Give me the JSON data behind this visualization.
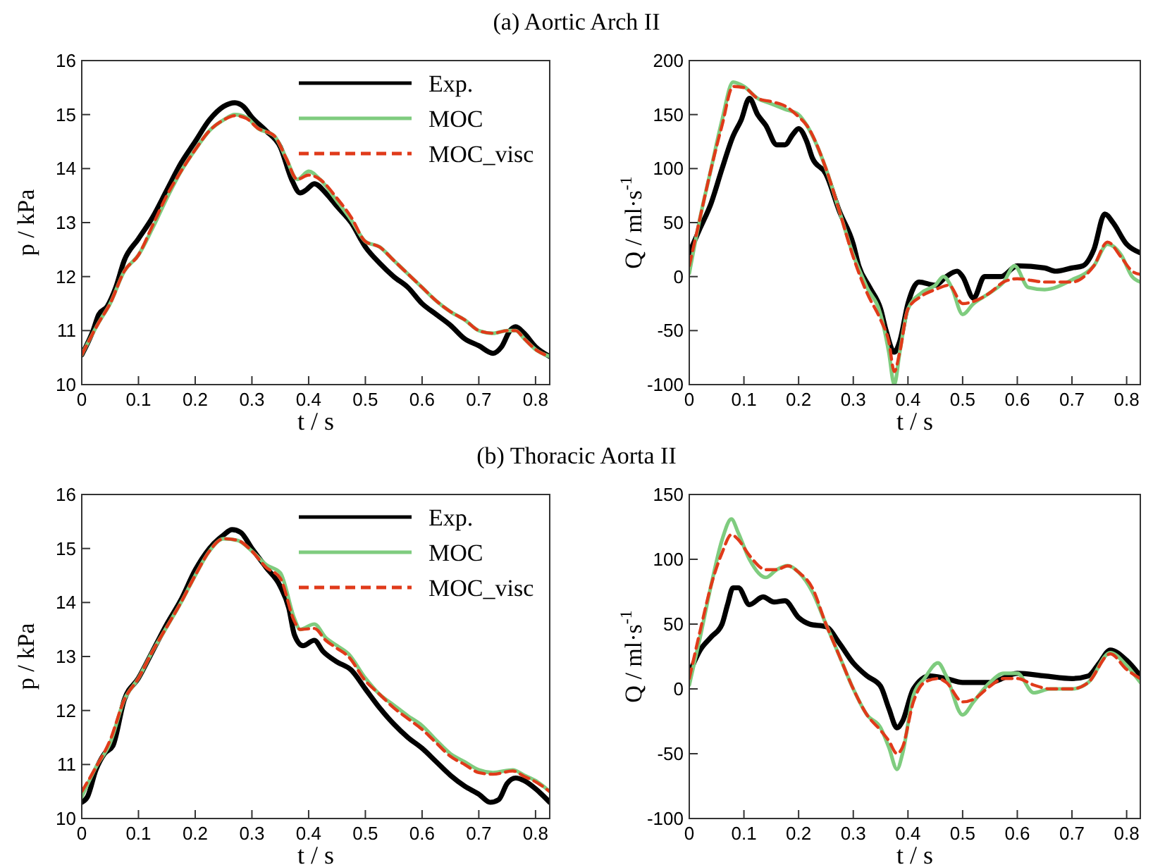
{
  "chart_data": [
    {
      "type": "line",
      "title": "(a) Aortic Arch II",
      "xlabel": "t / s",
      "ylabel": "p / kPa",
      "xlim": [
        0,
        0.825
      ],
      "ylim": [
        10,
        16
      ],
      "xticks": [
        0,
        0.1,
        0.2,
        0.3,
        0.4,
        0.5,
        0.6,
        0.7,
        0.8
      ],
      "yticks": [
        10,
        11,
        12,
        13,
        14,
        15,
        16
      ],
      "legend": "top right",
      "grid": false,
      "marker": "none",
      "series": [
        {
          "name": "Exp.",
          "color": "#000000",
          "line_style": "solid",
          "x": [
            0,
            0.02,
            0.03,
            0.045,
            0.06,
            0.075,
            0.1,
            0.125,
            0.15,
            0.175,
            0.2,
            0.225,
            0.25,
            0.27,
            0.285,
            0.3,
            0.325,
            0.35,
            0.37,
            0.385,
            0.395,
            0.41,
            0.43,
            0.45,
            0.475,
            0.5,
            0.525,
            0.55,
            0.575,
            0.6,
            0.625,
            0.65,
            0.675,
            0.7,
            0.725,
            0.74,
            0.755,
            0.765,
            0.78,
            0.8,
            0.825
          ],
          "values": [
            10.55,
            11.0,
            11.3,
            11.45,
            11.8,
            12.3,
            12.7,
            13.1,
            13.6,
            14.1,
            14.5,
            14.9,
            15.15,
            15.22,
            15.15,
            14.95,
            14.7,
            14.4,
            13.8,
            13.55,
            13.6,
            13.72,
            13.55,
            13.3,
            13.0,
            12.55,
            12.25,
            12.0,
            11.8,
            11.5,
            11.3,
            11.1,
            10.85,
            10.72,
            10.58,
            10.7,
            11.0,
            11.07,
            10.95,
            10.7,
            10.52
          ]
        },
        {
          "name": "MOC",
          "color": "#7fcc7f",
          "line_style": "solid",
          "x": [
            0,
            0.03,
            0.05,
            0.075,
            0.1,
            0.125,
            0.15,
            0.175,
            0.2,
            0.225,
            0.25,
            0.27,
            0.29,
            0.31,
            0.34,
            0.36,
            0.38,
            0.4,
            0.42,
            0.45,
            0.475,
            0.5,
            0.525,
            0.55,
            0.575,
            0.6,
            0.625,
            0.65,
            0.675,
            0.7,
            0.725,
            0.75,
            0.765,
            0.78,
            0.8,
            0.825
          ],
          "values": [
            10.55,
            11.15,
            11.5,
            12.1,
            12.4,
            12.9,
            13.45,
            13.95,
            14.35,
            14.7,
            14.9,
            15.0,
            14.95,
            14.75,
            14.6,
            14.2,
            13.8,
            13.95,
            13.8,
            13.4,
            13.05,
            12.65,
            12.55,
            12.3,
            12.05,
            11.8,
            11.55,
            11.35,
            11.2,
            11.0,
            10.95,
            11.0,
            11.0,
            10.85,
            10.65,
            10.52
          ]
        },
        {
          "name": "MOC_visc",
          "color": "#e03a1a",
          "line_style": "dashed",
          "x": [
            0,
            0.03,
            0.05,
            0.075,
            0.1,
            0.125,
            0.15,
            0.175,
            0.2,
            0.225,
            0.25,
            0.27,
            0.29,
            0.31,
            0.34,
            0.36,
            0.38,
            0.4,
            0.42,
            0.45,
            0.475,
            0.5,
            0.525,
            0.55,
            0.575,
            0.6,
            0.625,
            0.65,
            0.675,
            0.7,
            0.725,
            0.75,
            0.765,
            0.78,
            0.8,
            0.825
          ],
          "values": [
            10.55,
            11.15,
            11.5,
            12.1,
            12.4,
            12.95,
            13.5,
            13.95,
            14.35,
            14.7,
            14.9,
            14.98,
            14.93,
            14.75,
            14.6,
            14.2,
            13.8,
            13.88,
            13.8,
            13.45,
            13.1,
            12.65,
            12.55,
            12.3,
            12.05,
            11.8,
            11.55,
            11.35,
            11.2,
            11.0,
            10.95,
            11.0,
            11.0,
            10.85,
            10.65,
            10.52
          ]
        }
      ]
    },
    {
      "type": "line",
      "xlabel": "t / s",
      "ylabel": "Q / ml·s$^{-1}$",
      "xlim": [
        0,
        0.825
      ],
      "ylim": [
        -100,
        200
      ],
      "xticks": [
        0,
        0.1,
        0.2,
        0.3,
        0.4,
        0.5,
        0.6,
        0.7,
        0.8
      ],
      "yticks": [
        -100,
        -50,
        0,
        50,
        100,
        150,
        200
      ],
      "grid": false,
      "marker": "none",
      "series": [
        {
          "color": "#000000",
          "line_style": "solid",
          "x": [
            0,
            0.02,
            0.04,
            0.06,
            0.08,
            0.095,
            0.11,
            0.125,
            0.14,
            0.16,
            0.175,
            0.19,
            0.2,
            0.215,
            0.225,
            0.25,
            0.275,
            0.3,
            0.31,
            0.33,
            0.35,
            0.36,
            0.375,
            0.385,
            0.4,
            0.42,
            0.45,
            0.47,
            0.49,
            0.5,
            0.52,
            0.54,
            0.57,
            0.6,
            0.65,
            0.67,
            0.7,
            0.72,
            0.74,
            0.76,
            0.775,
            0.8,
            0.825
          ],
          "values": [
            22,
            45,
            68,
            100,
            130,
            145,
            165,
            150,
            140,
            122,
            122,
            132,
            137,
            125,
            110,
            95,
            60,
            30,
            10,
            -10,
            -30,
            -50,
            -70,
            -60,
            -25,
            -5,
            -8,
            0,
            5,
            0,
            -20,
            0,
            0,
            10,
            8,
            5,
            8,
            10,
            25,
            58,
            50,
            30,
            22
          ]
        },
        {
          "color": "#7fcc7f",
          "line_style": "solid",
          "x": [
            0,
            0.02,
            0.04,
            0.06,
            0.08,
            0.1,
            0.125,
            0.15,
            0.175,
            0.2,
            0.215,
            0.25,
            0.275,
            0.3,
            0.325,
            0.35,
            0.365,
            0.375,
            0.385,
            0.4,
            0.425,
            0.45,
            0.465,
            0.48,
            0.5,
            0.52,
            0.55,
            0.575,
            0.595,
            0.62,
            0.65,
            0.7,
            0.74,
            0.765,
            0.79,
            0.81,
            0.825
          ],
          "values": [
            3,
            55,
            100,
            145,
            180,
            176,
            165,
            160,
            155,
            150,
            140,
            100,
            60,
            20,
            -10,
            -35,
            -70,
            -100,
            -70,
            -30,
            -15,
            -8,
            0,
            -10,
            -35,
            -25,
            -15,
            -5,
            10,
            -10,
            -12,
            -3,
            10,
            30,
            20,
            0,
            -5
          ]
        },
        {
          "color": "#e03a1a",
          "line_style": "dashed",
          "x": [
            0,
            0.02,
            0.04,
            0.06,
            0.08,
            0.1,
            0.125,
            0.15,
            0.175,
            0.2,
            0.215,
            0.25,
            0.275,
            0.3,
            0.325,
            0.35,
            0.365,
            0.375,
            0.385,
            0.4,
            0.425,
            0.45,
            0.475,
            0.5,
            0.525,
            0.55,
            0.575,
            0.6,
            0.65,
            0.7,
            0.74,
            0.765,
            0.79,
            0.81,
            0.825
          ],
          "values": [
            10,
            55,
            100,
            140,
            176,
            175,
            165,
            162,
            158,
            148,
            140,
            100,
            60,
            18,
            -15,
            -40,
            -60,
            -88,
            -70,
            -30,
            -18,
            -12,
            -8,
            -25,
            -22,
            -15,
            -5,
            -2,
            -5,
            -5,
            10,
            32,
            18,
            5,
            2
          ]
        }
      ]
    },
    {
      "type": "line",
      "title": "(b) Thoracic Aorta II",
      "xlabel": "t / s",
      "ylabel": "p / kPa",
      "xlim": [
        0,
        0.825
      ],
      "ylim": [
        10,
        16
      ],
      "xticks": [
        0,
        0.1,
        0.2,
        0.3,
        0.4,
        0.5,
        0.6,
        0.7,
        0.8
      ],
      "yticks": [
        10,
        11,
        12,
        13,
        14,
        15,
        16
      ],
      "legend": "top right",
      "grid": false,
      "marker": "none",
      "series": [
        {
          "name": "Exp.",
          "color": "#000000",
          "line_style": "solid",
          "x": [
            0,
            0.01,
            0.025,
            0.04,
            0.055,
            0.075,
            0.1,
            0.125,
            0.15,
            0.175,
            0.2,
            0.225,
            0.25,
            0.265,
            0.28,
            0.3,
            0.325,
            0.35,
            0.365,
            0.375,
            0.39,
            0.41,
            0.425,
            0.45,
            0.475,
            0.5,
            0.525,
            0.55,
            0.575,
            0.6,
            0.625,
            0.65,
            0.675,
            0.7,
            0.72,
            0.735,
            0.75,
            0.765,
            0.78,
            0.8,
            0.825
          ],
          "values": [
            10.3,
            10.4,
            10.9,
            11.2,
            11.35,
            12.2,
            12.6,
            13.1,
            13.6,
            14.05,
            14.6,
            15.0,
            15.25,
            15.35,
            15.3,
            15.0,
            14.65,
            14.3,
            13.9,
            13.4,
            13.2,
            13.3,
            13.1,
            12.9,
            12.75,
            12.4,
            12.05,
            11.75,
            11.5,
            11.3,
            11.05,
            10.8,
            10.6,
            10.45,
            10.3,
            10.35,
            10.65,
            10.75,
            10.7,
            10.55,
            10.3
          ]
        },
        {
          "name": "MOC",
          "color": "#7fcc7f",
          "line_style": "solid",
          "x": [
            0,
            0.025,
            0.05,
            0.075,
            0.1,
            0.125,
            0.15,
            0.175,
            0.2,
            0.225,
            0.25,
            0.275,
            0.3,
            0.325,
            0.35,
            0.375,
            0.385,
            0.41,
            0.43,
            0.45,
            0.47,
            0.5,
            0.525,
            0.55,
            0.575,
            0.6,
            0.625,
            0.65,
            0.675,
            0.7,
            0.725,
            0.76,
            0.78,
            0.8,
            0.825
          ],
          "values": [
            10.4,
            10.95,
            11.4,
            12.2,
            12.6,
            13.1,
            13.55,
            14.0,
            14.5,
            14.95,
            15.18,
            15.15,
            14.95,
            14.7,
            14.55,
            13.7,
            13.5,
            13.6,
            13.35,
            13.2,
            13.05,
            12.6,
            12.3,
            12.1,
            11.9,
            11.72,
            11.45,
            11.2,
            11.05,
            10.9,
            10.85,
            10.9,
            10.8,
            10.7,
            10.5
          ]
        },
        {
          "name": "MOC_visc",
          "color": "#e03a1a",
          "line_style": "dashed",
          "x": [
            0,
            0.025,
            0.05,
            0.075,
            0.1,
            0.125,
            0.15,
            0.175,
            0.2,
            0.225,
            0.25,
            0.275,
            0.3,
            0.325,
            0.35,
            0.375,
            0.385,
            0.41,
            0.43,
            0.45,
            0.47,
            0.5,
            0.525,
            0.55,
            0.575,
            0.6,
            0.625,
            0.65,
            0.675,
            0.7,
            0.725,
            0.76,
            0.78,
            0.8,
            0.825
          ],
          "values": [
            10.5,
            10.95,
            11.45,
            12.2,
            12.6,
            13.1,
            13.55,
            14.0,
            14.5,
            14.95,
            15.18,
            15.15,
            14.95,
            14.65,
            14.45,
            13.65,
            13.5,
            13.52,
            13.3,
            13.15,
            13.0,
            12.55,
            12.3,
            12.05,
            11.85,
            11.65,
            11.4,
            11.15,
            11.0,
            10.85,
            10.82,
            10.88,
            10.78,
            10.68,
            10.5
          ]
        }
      ]
    },
    {
      "type": "line",
      "xlabel": "t / s",
      "ylabel": "Q / ml·s$^{-1}$",
      "xlim": [
        0,
        0.825
      ],
      "ylim": [
        -100,
        150
      ],
      "xticks": [
        0,
        0.1,
        0.2,
        0.3,
        0.4,
        0.5,
        0.6,
        0.7,
        0.8
      ],
      "yticks": [
        -100,
        -50,
        0,
        50,
        100,
        150
      ],
      "grid": false,
      "marker": "none",
      "series": [
        {
          "color": "#000000",
          "line_style": "solid",
          "x": [
            0,
            0.02,
            0.04,
            0.06,
            0.07,
            0.08,
            0.09,
            0.11,
            0.135,
            0.155,
            0.175,
            0.2,
            0.22,
            0.25,
            0.275,
            0.3,
            0.325,
            0.35,
            0.365,
            0.38,
            0.39,
            0.41,
            0.44,
            0.47,
            0.5,
            0.55,
            0.6,
            0.65,
            0.7,
            0.73,
            0.75,
            0.77,
            0.8,
            0.825
          ],
          "values": [
            12,
            30,
            40,
            50,
            65,
            78,
            78,
            65,
            71,
            67,
            68,
            55,
            50,
            48,
            35,
            20,
            10,
            2,
            -15,
            -30,
            -25,
            0,
            10,
            8,
            5,
            5,
            12,
            10,
            8,
            10,
            20,
            30,
            22,
            10
          ]
        },
        {
          "color": "#7fcc7f",
          "line_style": "solid",
          "x": [
            0,
            0.02,
            0.04,
            0.06,
            0.077,
            0.09,
            0.11,
            0.14,
            0.16,
            0.18,
            0.2,
            0.225,
            0.25,
            0.275,
            0.3,
            0.325,
            0.35,
            0.365,
            0.38,
            0.39,
            0.41,
            0.43,
            0.455,
            0.47,
            0.5,
            0.52,
            0.55,
            0.575,
            0.6,
            0.63,
            0.66,
            0.7,
            0.73,
            0.77,
            0.8,
            0.825
          ],
          "values": [
            3,
            40,
            80,
            115,
            131,
            120,
            100,
            86,
            92,
            95,
            90,
            75,
            50,
            25,
            0,
            -20,
            -30,
            -45,
            -62,
            -50,
            -5,
            8,
            20,
            10,
            -20,
            -10,
            5,
            12,
            12,
            -3,
            0,
            0,
            5,
            28,
            18,
            5
          ]
        },
        {
          "color": "#e03a1a",
          "line_style": "dashed",
          "x": [
            0,
            0.02,
            0.04,
            0.06,
            0.077,
            0.09,
            0.11,
            0.14,
            0.16,
            0.18,
            0.2,
            0.225,
            0.25,
            0.275,
            0.3,
            0.325,
            0.35,
            0.365,
            0.38,
            0.39,
            0.41,
            0.43,
            0.455,
            0.47,
            0.5,
            0.52,
            0.55,
            0.575,
            0.6,
            0.63,
            0.66,
            0.7,
            0.73,
            0.77,
            0.8,
            0.825
          ],
          "values": [
            8,
            45,
            80,
            105,
            119,
            115,
            103,
            92,
            92,
            95,
            90,
            78,
            50,
            25,
            0,
            -20,
            -32,
            -40,
            -50,
            -45,
            -10,
            5,
            8,
            5,
            -10,
            -8,
            2,
            8,
            8,
            3,
            0,
            0,
            5,
            27,
            15,
            8
          ]
        }
      ]
    }
  ]
}
